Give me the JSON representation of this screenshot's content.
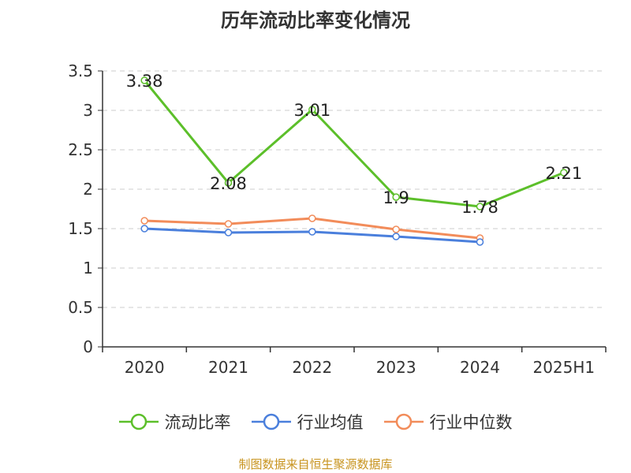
{
  "chart_data": {
    "type": "line",
    "title": "历年流动比率变化情况",
    "categories": [
      "2020",
      "2021",
      "2022",
      "2023",
      "2024",
      "2025H1"
    ],
    "ylim": [
      0,
      3.5
    ],
    "yticks": [
      "0",
      "0.5",
      "1",
      "1.5",
      "2",
      "2.5",
      "3",
      "3.5"
    ],
    "grid": true,
    "legend_position": "bottom",
    "series": [
      {
        "name": "流动比率",
        "color": "#5cbf2a",
        "values": [
          3.38,
          2.08,
          3.01,
          1.9,
          1.78,
          2.21
        ],
        "labels": [
          "3.38",
          "2.08",
          "3.01",
          "1.9",
          "1.78",
          "2.21"
        ]
      },
      {
        "name": "行业均值",
        "color": "#4a7fdc",
        "values": [
          1.5,
          1.45,
          1.46,
          1.4,
          1.33,
          null
        ]
      },
      {
        "name": "行业中位数",
        "color": "#f28c5a",
        "values": [
          1.6,
          1.56,
          1.63,
          1.49,
          1.38,
          null
        ]
      }
    ]
  },
  "source_note": "制图数据来自恒生聚源数据库"
}
